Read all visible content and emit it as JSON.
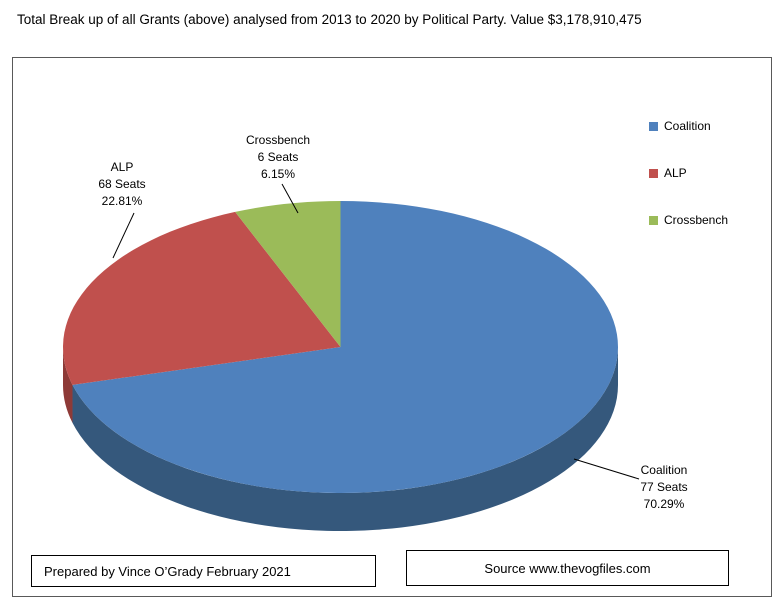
{
  "title": "Total Break up of all Grants (above) analysed from 2013 to 2020 by Political Party. Value $3,178,910,475",
  "chart_data": {
    "type": "pie",
    "effect": "3d",
    "title": "Total Break up of all Grants (above) analysed from 2013 to 2020 by Political Party. Value $3,178,910,475",
    "slices": [
      {
        "label": "Coalition",
        "seats": 77,
        "percent": 70.29,
        "color": "#4F81BD",
        "side_color": "#35587C"
      },
      {
        "label": "ALP",
        "seats": 68,
        "percent": 22.81,
        "color": "#C0504D",
        "side_color": "#8E3A37"
      },
      {
        "label": "Crossbench",
        "seats": 6,
        "percent": 6.15,
        "color": "#9BBB59",
        "side_color": "#71893F"
      }
    ],
    "legend": [
      "Coalition",
      "ALP",
      "Crossbench"
    ],
    "legend_position": "right",
    "callout_format": "{label} / {seats} Seats / {percent}%"
  },
  "footer": {
    "prepared_by": "Prepared by Vince O’Grady February 2021",
    "source": "Source www.thevogfiles.com"
  }
}
